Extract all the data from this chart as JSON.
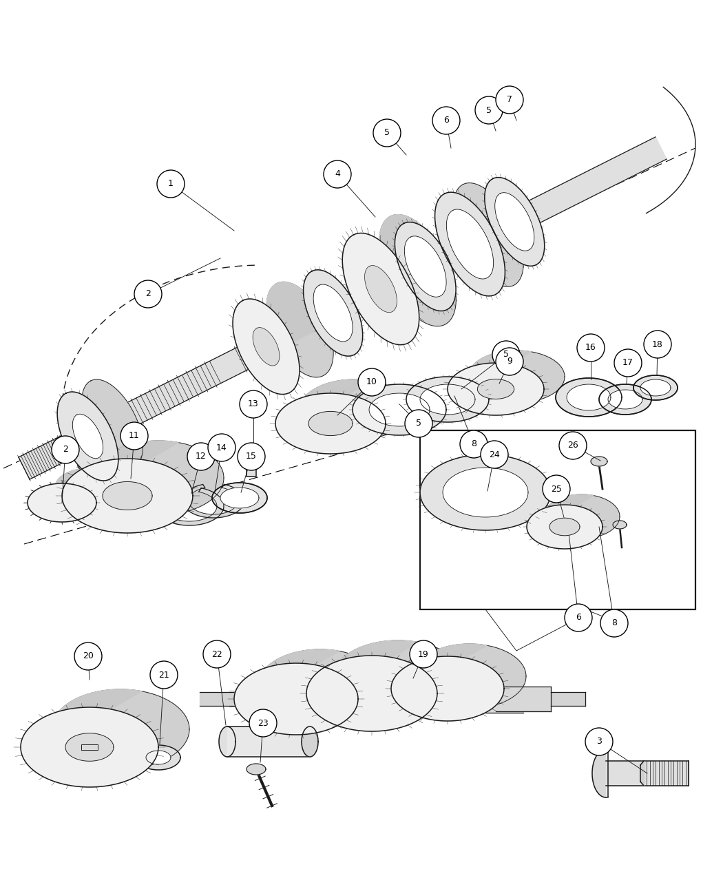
{
  "bg_color": "#ffffff",
  "line_color": "#1a1a1a",
  "figsize": [
    10.5,
    12.75
  ],
  "dpi": 100,
  "shaft_color": "#e8e8e8",
  "gear_face_color": "#f0f0f0",
  "gear_back_color": "#d0d0d0",
  "gear_side_color": "#c8c8c8",
  "ring_color": "#e4e4e4",
  "box_color": "#ffffff",
  "label_circle_r": 0.19,
  "label_fontsize": 9.5
}
